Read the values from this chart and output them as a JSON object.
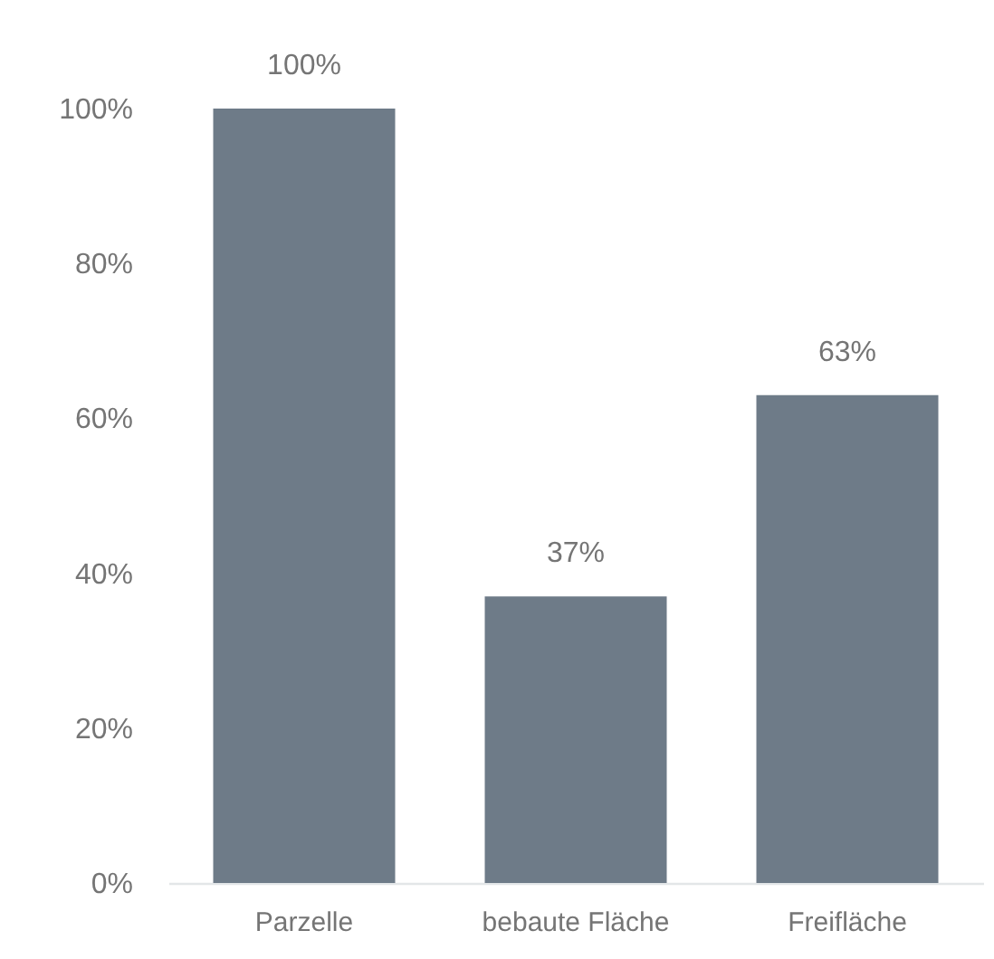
{
  "chart_data": {
    "type": "bar",
    "categories": [
      "Parzelle",
      "bebaute Fläche",
      "Freifläche"
    ],
    "values": [
      100,
      37,
      63
    ],
    "color": "#6e7b88",
    "value_labels": [
      "100%",
      "37%",
      "63%"
    ],
    "ylim": [
      0,
      100
    ],
    "yticks": [
      {
        "value": 0,
        "label": "0%"
      },
      {
        "value": 20,
        "label": "20%"
      },
      {
        "value": 40,
        "label": "40%"
      },
      {
        "value": 60,
        "label": "60%"
      },
      {
        "value": 80,
        "label": "80%"
      },
      {
        "value": 100,
        "label": "100%"
      }
    ]
  }
}
